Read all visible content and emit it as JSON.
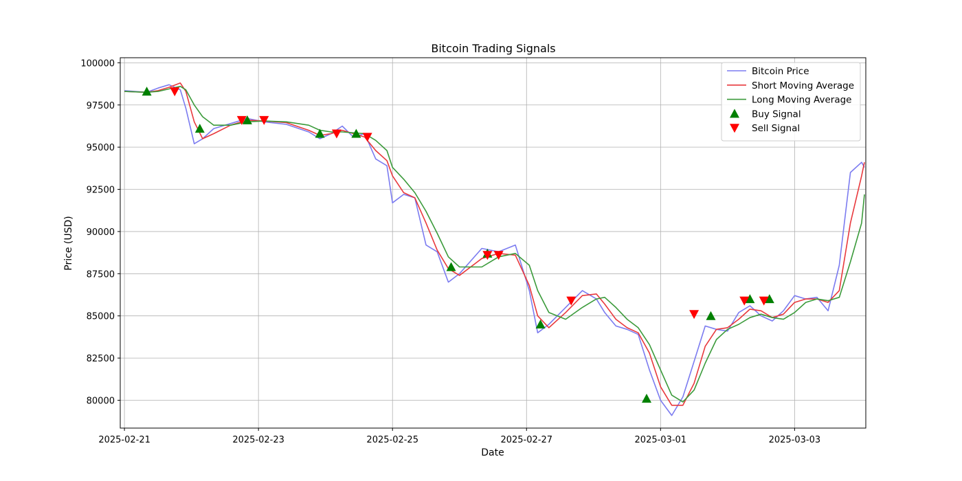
{
  "chart_data": {
    "type": "line",
    "title": "Bitcoin Trading Signals",
    "xlabel": "Date",
    "ylabel": "Price (USD)",
    "x_range": [
      "2025-02-20T22:30",
      "2025-03-04T01:30"
    ],
    "ylim": [
      78350,
      100300
    ],
    "x_ticks": [
      "2025-02-21",
      "2025-02-23",
      "2025-02-25",
      "2025-02-27",
      "2025-03-01",
      "2025-03-03"
    ],
    "y_ticks": [
      80000,
      82500,
      85000,
      87500,
      90000,
      92500,
      95000,
      97500,
      100000
    ],
    "grid": true,
    "legend_position": "upper right",
    "series": [
      {
        "name": "Bitcoin Price",
        "kind": "line",
        "color": "#7b7bf0",
        "points": [
          [
            "2025-02-21T00:00",
            98350
          ],
          [
            "2025-02-21T08:00",
            98250
          ],
          [
            "2025-02-21T12:00",
            98500
          ],
          [
            "2025-02-21T16:00",
            98700
          ],
          [
            "2025-02-21T20:00",
            98400
          ],
          [
            "2025-02-21T22:00",
            97300
          ],
          [
            "2025-02-22T01:00",
            95200
          ],
          [
            "2025-02-22T04:00",
            95500
          ],
          [
            "2025-02-22T08:00",
            96100
          ],
          [
            "2025-02-22T14:00",
            96400
          ],
          [
            "2025-02-22T20:00",
            96700
          ],
          [
            "2025-02-23T02:00",
            96500
          ],
          [
            "2025-02-23T10:00",
            96350
          ],
          [
            "2025-02-23T18:00",
            95900
          ],
          [
            "2025-02-23T22:00",
            95500
          ],
          [
            "2025-02-24T02:00",
            95800
          ],
          [
            "2025-02-24T06:00",
            96250
          ],
          [
            "2025-02-24T10:00",
            95600
          ],
          [
            "2025-02-24T14:00",
            95800
          ],
          [
            "2025-02-24T18:00",
            94300
          ],
          [
            "2025-02-24T22:00",
            93900
          ],
          [
            "2025-02-25T00:00",
            91700
          ],
          [
            "2025-02-25T04:00",
            92200
          ],
          [
            "2025-02-25T08:00",
            92000
          ],
          [
            "2025-02-25T12:00",
            89200
          ],
          [
            "2025-02-25T16:00",
            88800
          ],
          [
            "2025-02-25T20:00",
            87000
          ],
          [
            "2025-02-26T00:00",
            87500
          ],
          [
            "2025-02-26T08:00",
            89000
          ],
          [
            "2025-02-26T14:00",
            88800
          ],
          [
            "2025-02-26T20:00",
            89200
          ],
          [
            "2025-02-27T01:00",
            86500
          ],
          [
            "2025-02-27T04:00",
            84000
          ],
          [
            "2025-02-27T08:00",
            84500
          ],
          [
            "2025-02-27T14:00",
            85500
          ],
          [
            "2025-02-27T20:00",
            86500
          ],
          [
            "2025-02-28T01:00",
            86000
          ],
          [
            "2025-02-28T04:00",
            85200
          ],
          [
            "2025-02-28T08:00",
            84400
          ],
          [
            "2025-02-28T12:00",
            84200
          ],
          [
            "2025-02-28T16:00",
            83900
          ],
          [
            "2025-02-28T20:00",
            81800
          ],
          [
            "2025-03-01T00:00",
            80000
          ],
          [
            "2025-03-01T04:00",
            79100
          ],
          [
            "2025-03-01T08:00",
            80200
          ],
          [
            "2025-03-01T12:00",
            82300
          ],
          [
            "2025-03-01T16:00",
            84400
          ],
          [
            "2025-03-01T20:00",
            84200
          ],
          [
            "2025-03-02T00:00",
            84100
          ],
          [
            "2025-03-02T04:00",
            85200
          ],
          [
            "2025-03-02T08:00",
            85600
          ],
          [
            "2025-03-02T12:00",
            85000
          ],
          [
            "2025-03-02T16:00",
            84700
          ],
          [
            "2025-03-02T20:00",
            85300
          ],
          [
            "2025-03-03T00:00",
            86200
          ],
          [
            "2025-03-03T04:00",
            86000
          ],
          [
            "2025-03-03T08:00",
            86100
          ],
          [
            "2025-03-03T12:00",
            85300
          ],
          [
            "2025-03-03T16:00",
            88000
          ],
          [
            "2025-03-03T20:00",
            93500
          ],
          [
            "2025-03-04T00:00",
            94100
          ],
          [
            "2025-03-04T01:00",
            93800
          ]
        ]
      },
      {
        "name": "Short Moving Average",
        "kind": "line",
        "color": "#e8383c",
        "points": [
          [
            "2025-02-21T00:00",
            98300
          ],
          [
            "2025-02-21T08:00",
            98250
          ],
          [
            "2025-02-21T12:00",
            98350
          ],
          [
            "2025-02-21T16:00",
            98550
          ],
          [
            "2025-02-21T20:00",
            98800
          ],
          [
            "2025-02-21T22:00",
            98300
          ],
          [
            "2025-02-22T01:00",
            96500
          ],
          [
            "2025-02-22T04:00",
            95500
          ],
          [
            "2025-02-22T08:00",
            95800
          ],
          [
            "2025-02-22T14:00",
            96300
          ],
          [
            "2025-02-22T20:00",
            96600
          ],
          [
            "2025-02-23T02:00",
            96550
          ],
          [
            "2025-02-23T10:00",
            96450
          ],
          [
            "2025-02-23T18:00",
            96000
          ],
          [
            "2025-02-23T22:00",
            95700
          ],
          [
            "2025-02-24T02:00",
            95800
          ],
          [
            "2025-02-24T06:00",
            96000
          ],
          [
            "2025-02-24T10:00",
            95800
          ],
          [
            "2025-02-24T14:00",
            95600
          ],
          [
            "2025-02-24T18:00",
            94800
          ],
          [
            "2025-02-24T22:00",
            94200
          ],
          [
            "2025-02-25T00:00",
            93300
          ],
          [
            "2025-02-25T04:00",
            92300
          ],
          [
            "2025-02-25T08:00",
            92000
          ],
          [
            "2025-02-25T12:00",
            90500
          ],
          [
            "2025-02-25T16:00",
            88900
          ],
          [
            "2025-02-25T20:00",
            87800
          ],
          [
            "2025-02-26T00:00",
            87400
          ],
          [
            "2025-02-26T08:00",
            88400
          ],
          [
            "2025-02-26T14:00",
            88700
          ],
          [
            "2025-02-26T20:00",
            88600
          ],
          [
            "2025-02-27T01:00",
            86800
          ],
          [
            "2025-02-27T04:00",
            85000
          ],
          [
            "2025-02-27T08:00",
            84300
          ],
          [
            "2025-02-27T14:00",
            85200
          ],
          [
            "2025-02-27T20:00",
            86200
          ],
          [
            "2025-02-28T01:00",
            86300
          ],
          [
            "2025-02-28T04:00",
            85700
          ],
          [
            "2025-02-28T08:00",
            84800
          ],
          [
            "2025-02-28T12:00",
            84300
          ],
          [
            "2025-02-28T16:00",
            84000
          ],
          [
            "2025-02-28T20:00",
            82800
          ],
          [
            "2025-03-01T00:00",
            80800
          ],
          [
            "2025-03-01T04:00",
            79700
          ],
          [
            "2025-03-01T08:00",
            79700
          ],
          [
            "2025-03-01T12:00",
            81000
          ],
          [
            "2025-03-01T16:00",
            83200
          ],
          [
            "2025-03-01T20:00",
            84200
          ],
          [
            "2025-03-02T00:00",
            84300
          ],
          [
            "2025-03-02T04:00",
            84800
          ],
          [
            "2025-03-02T08:00",
            85400
          ],
          [
            "2025-03-02T12:00",
            85300
          ],
          [
            "2025-03-02T16:00",
            84900
          ],
          [
            "2025-03-02T20:00",
            85100
          ],
          [
            "2025-03-03T00:00",
            85800
          ],
          [
            "2025-03-03T04:00",
            86000
          ],
          [
            "2025-03-03T08:00",
            86000
          ],
          [
            "2025-03-03T12:00",
            85800
          ],
          [
            "2025-03-03T16:00",
            86500
          ],
          [
            "2025-03-03T20:00",
            90500
          ],
          [
            "2025-03-04T00:00",
            93300
          ],
          [
            "2025-03-04T01:00",
            94100
          ]
        ]
      },
      {
        "name": "Long Moving Average",
        "kind": "line",
        "color": "#3a9a3a",
        "points": [
          [
            "2025-02-21T00:00",
            98300
          ],
          [
            "2025-02-21T08:00",
            98250
          ],
          [
            "2025-02-21T12:00",
            98300
          ],
          [
            "2025-02-21T16:00",
            98450
          ],
          [
            "2025-02-21T20:00",
            98600
          ],
          [
            "2025-02-21T22:00",
            98400
          ],
          [
            "2025-02-22T01:00",
            97500
          ],
          [
            "2025-02-22T04:00",
            96800
          ],
          [
            "2025-02-22T08:00",
            96300
          ],
          [
            "2025-02-22T14:00",
            96300
          ],
          [
            "2025-02-22T20:00",
            96500
          ],
          [
            "2025-02-23T02:00",
            96550
          ],
          [
            "2025-02-23T10:00",
            96500
          ],
          [
            "2025-02-23T18:00",
            96300
          ],
          [
            "2025-02-23T22:00",
            96000
          ],
          [
            "2025-02-24T02:00",
            95900
          ],
          [
            "2025-02-24T06:00",
            95900
          ],
          [
            "2025-02-24T10:00",
            95850
          ],
          [
            "2025-02-24T14:00",
            95800
          ],
          [
            "2025-02-24T18:00",
            95400
          ],
          [
            "2025-02-24T22:00",
            94800
          ],
          [
            "2025-02-25T00:00",
            93800
          ],
          [
            "2025-02-25T04:00",
            93100
          ],
          [
            "2025-02-25T08:00",
            92300
          ],
          [
            "2025-02-25T12:00",
            91200
          ],
          [
            "2025-02-25T16:00",
            89900
          ],
          [
            "2025-02-25T20:00",
            88500
          ],
          [
            "2025-02-26T00:00",
            87900
          ],
          [
            "2025-02-26T08:00",
            87900
          ],
          [
            "2025-02-26T14:00",
            88500
          ],
          [
            "2025-02-26T20:00",
            88700
          ],
          [
            "2025-02-27T01:00",
            88000
          ],
          [
            "2025-02-27T04:00",
            86500
          ],
          [
            "2025-02-27T08:00",
            85200
          ],
          [
            "2025-02-27T14:00",
            84800
          ],
          [
            "2025-02-27T20:00",
            85500
          ],
          [
            "2025-02-28T01:00",
            86000
          ],
          [
            "2025-02-28T04:00",
            86100
          ],
          [
            "2025-02-28T08:00",
            85500
          ],
          [
            "2025-02-28T12:00",
            84800
          ],
          [
            "2025-02-28T16:00",
            84300
          ],
          [
            "2025-02-28T20:00",
            83300
          ],
          [
            "2025-03-01T00:00",
            81800
          ],
          [
            "2025-03-01T04:00",
            80300
          ],
          [
            "2025-03-01T08:00",
            79900
          ],
          [
            "2025-03-01T12:00",
            80600
          ],
          [
            "2025-03-01T16:00",
            82200
          ],
          [
            "2025-03-01T20:00",
            83600
          ],
          [
            "2025-03-02T00:00",
            84200
          ],
          [
            "2025-03-02T04:00",
            84500
          ],
          [
            "2025-03-02T08:00",
            84900
          ],
          [
            "2025-03-02T12:00",
            85100
          ],
          [
            "2025-03-02T16:00",
            84900
          ],
          [
            "2025-03-02T20:00",
            84800
          ],
          [
            "2025-03-03T00:00",
            85200
          ],
          [
            "2025-03-03T04:00",
            85800
          ],
          [
            "2025-03-03T08:00",
            86000
          ],
          [
            "2025-03-03T12:00",
            85900
          ],
          [
            "2025-03-03T16:00",
            86100
          ],
          [
            "2025-03-03T20:00",
            88200
          ],
          [
            "2025-03-04T00:00",
            90500
          ],
          [
            "2025-03-04T01:00",
            92200
          ]
        ]
      },
      {
        "name": "Buy Signal",
        "kind": "marker-up",
        "color": "#008000",
        "points": [
          [
            "2025-02-21T08:00",
            98300
          ],
          [
            "2025-02-22T03:00",
            96100
          ],
          [
            "2025-02-22T20:00",
            96600
          ],
          [
            "2025-02-23T22:00",
            95800
          ],
          [
            "2025-02-24T11:00",
            95800
          ],
          [
            "2025-02-25T21:00",
            87900
          ],
          [
            "2025-02-26T10:00",
            88700
          ],
          [
            "2025-02-27T05:00",
            84500
          ],
          [
            "2025-02-28T19:00",
            80100
          ],
          [
            "2025-03-01T18:00",
            85000
          ],
          [
            "2025-03-02T08:00",
            86000
          ],
          [
            "2025-03-02T15:00",
            86000
          ]
        ]
      },
      {
        "name": "Sell Signal",
        "kind": "marker-down",
        "color": "#ff0000",
        "points": [
          [
            "2025-02-21T18:00",
            98300
          ],
          [
            "2025-02-22T18:00",
            96600
          ],
          [
            "2025-02-23T02:00",
            96600
          ],
          [
            "2025-02-24T04:00",
            95800
          ],
          [
            "2025-02-24T15:00",
            95600
          ],
          [
            "2025-02-26T10:00",
            88600
          ],
          [
            "2025-02-26T14:00",
            88600
          ],
          [
            "2025-02-27T16:00",
            85900
          ],
          [
            "2025-03-01T12:00",
            85100
          ],
          [
            "2025-03-02T06:00",
            85900
          ],
          [
            "2025-03-02T13:00",
            85900
          ]
        ]
      }
    ]
  }
}
